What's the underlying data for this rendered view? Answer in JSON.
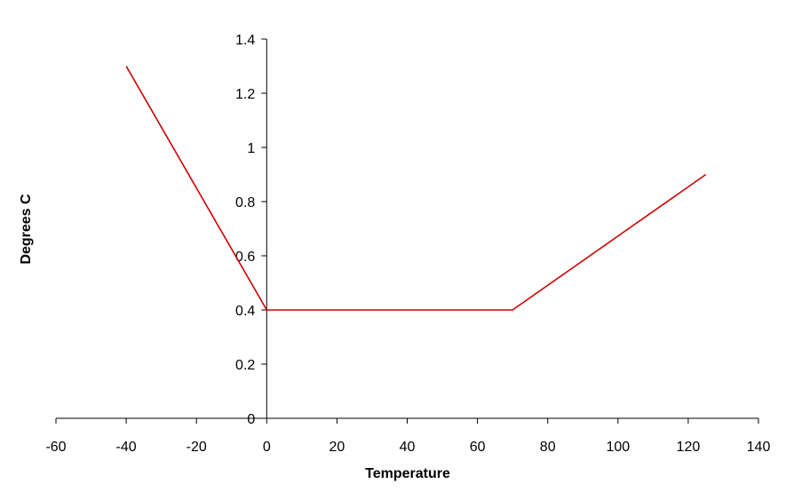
{
  "chart_data": {
    "type": "line",
    "title": "",
    "xlabel": "Temperature",
    "ylabel": "Degrees C",
    "xlim": [
      -60,
      140
    ],
    "ylim": [
      0,
      1.4
    ],
    "x_ticks": [
      -60,
      -40,
      -20,
      0,
      20,
      40,
      60,
      80,
      100,
      120,
      140
    ],
    "y_ticks": [
      0,
      0.2,
      0.4,
      0.6,
      0.8,
      1,
      1.2,
      1.4
    ],
    "x_tick_labels": [
      "-60",
      "-40",
      "-20",
      "0",
      "20",
      "40",
      "60",
      "80",
      "100",
      "120",
      "140"
    ],
    "y_tick_labels": [
      "0",
      "0.2",
      "0.4",
      "0.6",
      "0.8",
      "1",
      "1.2",
      "1.4"
    ],
    "grid": false,
    "legend": "none",
    "series": [
      {
        "color": "#cc0000",
        "x": [
          -40,
          0,
          70,
          125
        ],
        "y": [
          1.3,
          0.4,
          0.4,
          0.9
        ]
      }
    ]
  }
}
